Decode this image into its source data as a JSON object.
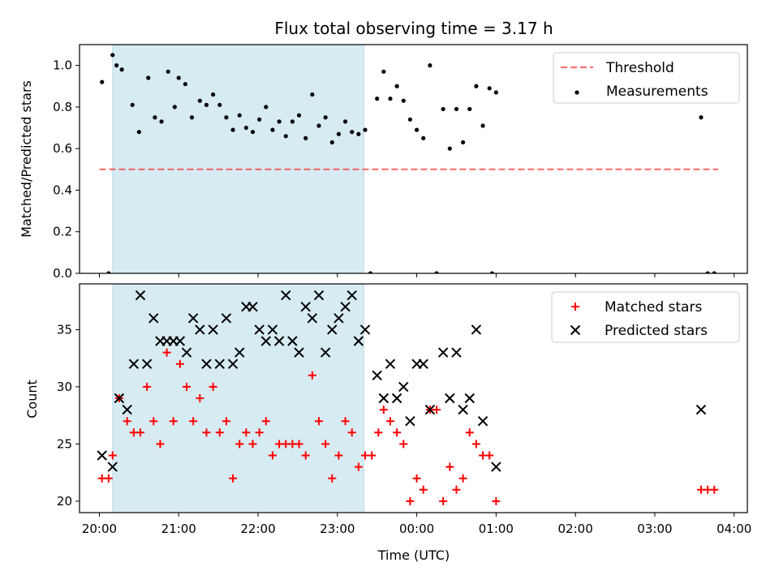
{
  "chart_data": [
    {
      "type": "scatter",
      "title": "Flux total observing time = 3.17 h",
      "xlabel": "",
      "ylabel": "Matched/Predicted stars",
      "xlim": [
        "19:45",
        "04:10"
      ],
      "ylim": [
        0.0,
        1.1
      ],
      "yticks": [
        "0.0",
        "0.2",
        "0.4",
        "0.6",
        "0.8",
        "1.0"
      ],
      "grid": false,
      "legend": "top-right",
      "shaded_region": {
        "start": "20:10",
        "end": "23:20",
        "color": "#add8e6"
      },
      "threshold": {
        "name": "Threshold",
        "value": 0.5,
        "x_start": "20:00",
        "x_end": "03:48",
        "color": "#ff0000",
        "style": "dashed"
      },
      "series": [
        {
          "name": "Measurements",
          "color": "#000000",
          "marker": "dot",
          "points": [
            [
              "20:02",
              0.92
            ],
            [
              "20:07",
              0.0
            ],
            [
              "20:10",
              1.05
            ],
            [
              "20:13",
              1.0
            ],
            [
              "20:17",
              0.98
            ],
            [
              "20:25",
              0.81
            ],
            [
              "20:30",
              0.68
            ],
            [
              "20:37",
              0.94
            ],
            [
              "20:42",
              0.75
            ],
            [
              "20:47",
              0.73
            ],
            [
              "20:52",
              0.97
            ],
            [
              "20:57",
              0.8
            ],
            [
              "21:00",
              0.94
            ],
            [
              "21:05",
              0.91
            ],
            [
              "21:10",
              0.75
            ],
            [
              "21:16",
              0.83
            ],
            [
              "21:21",
              0.81
            ],
            [
              "21:26",
              0.86
            ],
            [
              "21:31",
              0.81
            ],
            [
              "21:36",
              0.75
            ],
            [
              "21:41",
              0.69
            ],
            [
              "21:46",
              0.76
            ],
            [
              "21:51",
              0.7
            ],
            [
              "21:56",
              0.68
            ],
            [
              "22:01",
              0.74
            ],
            [
              "22:06",
              0.8
            ],
            [
              "22:11",
              0.69
            ],
            [
              "22:16",
              0.73
            ],
            [
              "22:21",
              0.66
            ],
            [
              "22:26",
              0.73
            ],
            [
              "22:31",
              0.76
            ],
            [
              "22:36",
              0.65
            ],
            [
              "22:41",
              0.86
            ],
            [
              "22:46",
              0.71
            ],
            [
              "22:51",
              0.75
            ],
            [
              "22:56",
              0.63
            ],
            [
              "23:01",
              0.67
            ],
            [
              "23:06",
              0.73
            ],
            [
              "23:11",
              0.68
            ],
            [
              "23:16",
              0.67
            ],
            [
              "23:21",
              0.69
            ],
            [
              "23:25",
              0.0
            ],
            [
              "23:30",
              0.84
            ],
            [
              "23:35",
              0.97
            ],
            [
              "23:40",
              0.84
            ],
            [
              "23:45",
              0.9
            ],
            [
              "23:50",
              0.83
            ],
            [
              "23:55",
              0.74
            ],
            [
              "00:00",
              0.69
            ],
            [
              "00:05",
              0.65
            ],
            [
              "00:10",
              1.0
            ],
            [
              "00:15",
              0.0
            ],
            [
              "00:20",
              0.79
            ],
            [
              "00:25",
              0.6
            ],
            [
              "00:30",
              0.79
            ],
            [
              "00:35",
              0.63
            ],
            [
              "00:40",
              0.79
            ],
            [
              "00:45",
              0.9
            ],
            [
              "00:50",
              0.71
            ],
            [
              "00:55",
              0.89
            ],
            [
              "00:57",
              0.0
            ],
            [
              "01:00",
              0.87
            ],
            [
              "03:35",
              0.75
            ],
            [
              "03:40",
              0.0
            ],
            [
              "03:45",
              0.0
            ]
          ]
        }
      ],
      "legend_entries": [
        "Threshold",
        "Measurements"
      ]
    },
    {
      "type": "scatter",
      "title": "",
      "xlabel": "Time (UTC)",
      "ylabel": "Count",
      "xlim": [
        "19:45",
        "04:10"
      ],
      "ylim": [
        19,
        39
      ],
      "yticks": [
        "20",
        "25",
        "30",
        "35"
      ],
      "xticks": [
        "20:00",
        "21:00",
        "22:00",
        "23:00",
        "00:00",
        "01:00",
        "02:00",
        "03:00",
        "04:00"
      ],
      "grid": false,
      "legend": "top-right",
      "shaded_region": {
        "start": "20:10",
        "end": "23:20",
        "color": "#add8e6"
      },
      "series": [
        {
          "name": "Matched stars",
          "color": "#ff0000",
          "marker": "plus",
          "points": [
            [
              "20:02",
              22
            ],
            [
              "20:07",
              22
            ],
            [
              "20:10",
              24
            ],
            [
              "20:15",
              29
            ],
            [
              "20:21",
              27
            ],
            [
              "20:26",
              26
            ],
            [
              "20:31",
              26
            ],
            [
              "20:36",
              30
            ],
            [
              "20:41",
              27
            ],
            [
              "20:46",
              25
            ],
            [
              "20:51",
              33
            ],
            [
              "20:56",
              27
            ],
            [
              "21:01",
              32
            ],
            [
              "21:06",
              30
            ],
            [
              "21:11",
              27
            ],
            [
              "21:16",
              29
            ],
            [
              "21:21",
              26
            ],
            [
              "21:26",
              30
            ],
            [
              "21:31",
              26
            ],
            [
              "21:36",
              27
            ],
            [
              "21:41",
              22
            ],
            [
              "21:46",
              25
            ],
            [
              "21:51",
              26
            ],
            [
              "21:56",
              25
            ],
            [
              "22:01",
              26
            ],
            [
              "22:06",
              27
            ],
            [
              "22:11",
              24
            ],
            [
              "22:16",
              25
            ],
            [
              "22:21",
              25
            ],
            [
              "22:26",
              25
            ],
            [
              "22:31",
              25
            ],
            [
              "22:36",
              24
            ],
            [
              "22:41",
              31
            ],
            [
              "22:46",
              27
            ],
            [
              "22:51",
              25
            ],
            [
              "22:56",
              22
            ],
            [
              "23:01",
              24
            ],
            [
              "23:06",
              27
            ],
            [
              "23:11",
              26
            ],
            [
              "23:16",
              23
            ],
            [
              "23:21",
              24
            ],
            [
              "23:26",
              24
            ],
            [
              "23:31",
              26
            ],
            [
              "23:35",
              28
            ],
            [
              "23:40",
              27
            ],
            [
              "23:45",
              26
            ],
            [
              "23:50",
              25
            ],
            [
              "23:55",
              20
            ],
            [
              "00:00",
              22
            ],
            [
              "00:05",
              21
            ],
            [
              "00:10",
              28
            ],
            [
              "00:15",
              28
            ],
            [
              "00:20",
              20
            ],
            [
              "00:25",
              23
            ],
            [
              "00:30",
              21
            ],
            [
              "00:35",
              22
            ],
            [
              "00:40",
              26
            ],
            [
              "00:45",
              25
            ],
            [
              "00:50",
              24
            ],
            [
              "00:55",
              24
            ],
            [
              "01:00",
              20
            ],
            [
              "03:35",
              21
            ],
            [
              "03:40",
              21
            ],
            [
              "03:45",
              21
            ]
          ]
        },
        {
          "name": "Predicted stars",
          "color": "#000000",
          "marker": "x",
          "points": [
            [
              "20:02",
              24
            ],
            [
              "20:10",
              23
            ],
            [
              "20:15",
              29
            ],
            [
              "20:21",
              28
            ],
            [
              "20:26",
              32
            ],
            [
              "20:31",
              38
            ],
            [
              "20:36",
              32
            ],
            [
              "20:41",
              36
            ],
            [
              "20:46",
              34
            ],
            [
              "20:51",
              34
            ],
            [
              "20:56",
              34
            ],
            [
              "21:01",
              34
            ],
            [
              "21:06",
              33
            ],
            [
              "21:11",
              36
            ],
            [
              "21:16",
              35
            ],
            [
              "21:21",
              32
            ],
            [
              "21:26",
              35
            ],
            [
              "21:31",
              32
            ],
            [
              "21:36",
              36
            ],
            [
              "21:41",
              32
            ],
            [
              "21:46",
              33
            ],
            [
              "21:51",
              37
            ],
            [
              "21:56",
              37
            ],
            [
              "22:01",
              35
            ],
            [
              "22:06",
              34
            ],
            [
              "22:11",
              35
            ],
            [
              "22:16",
              34
            ],
            [
              "22:21",
              38
            ],
            [
              "22:26",
              34
            ],
            [
              "22:31",
              33
            ],
            [
              "22:36",
              37
            ],
            [
              "22:41",
              36
            ],
            [
              "22:46",
              38
            ],
            [
              "22:51",
              33
            ],
            [
              "22:56",
              35
            ],
            [
              "23:01",
              36
            ],
            [
              "23:06",
              37
            ],
            [
              "23:11",
              38
            ],
            [
              "23:16",
              34
            ],
            [
              "23:21",
              35
            ],
            [
              "23:30",
              31
            ],
            [
              "23:35",
              29
            ],
            [
              "23:40",
              32
            ],
            [
              "23:45",
              29
            ],
            [
              "23:50",
              30
            ],
            [
              "23:55",
              27
            ],
            [
              "00:00",
              32
            ],
            [
              "00:05",
              32
            ],
            [
              "00:10",
              28
            ],
            [
              "00:20",
              33
            ],
            [
              "00:25",
              29
            ],
            [
              "00:30",
              33
            ],
            [
              "00:35",
              28
            ],
            [
              "00:40",
              29
            ],
            [
              "00:45",
              35
            ],
            [
              "00:50",
              27
            ],
            [
              "01:00",
              23
            ],
            [
              "03:35",
              28
            ]
          ]
        }
      ],
      "legend_entries": [
        "Matched stars",
        "Predicted stars"
      ]
    }
  ]
}
